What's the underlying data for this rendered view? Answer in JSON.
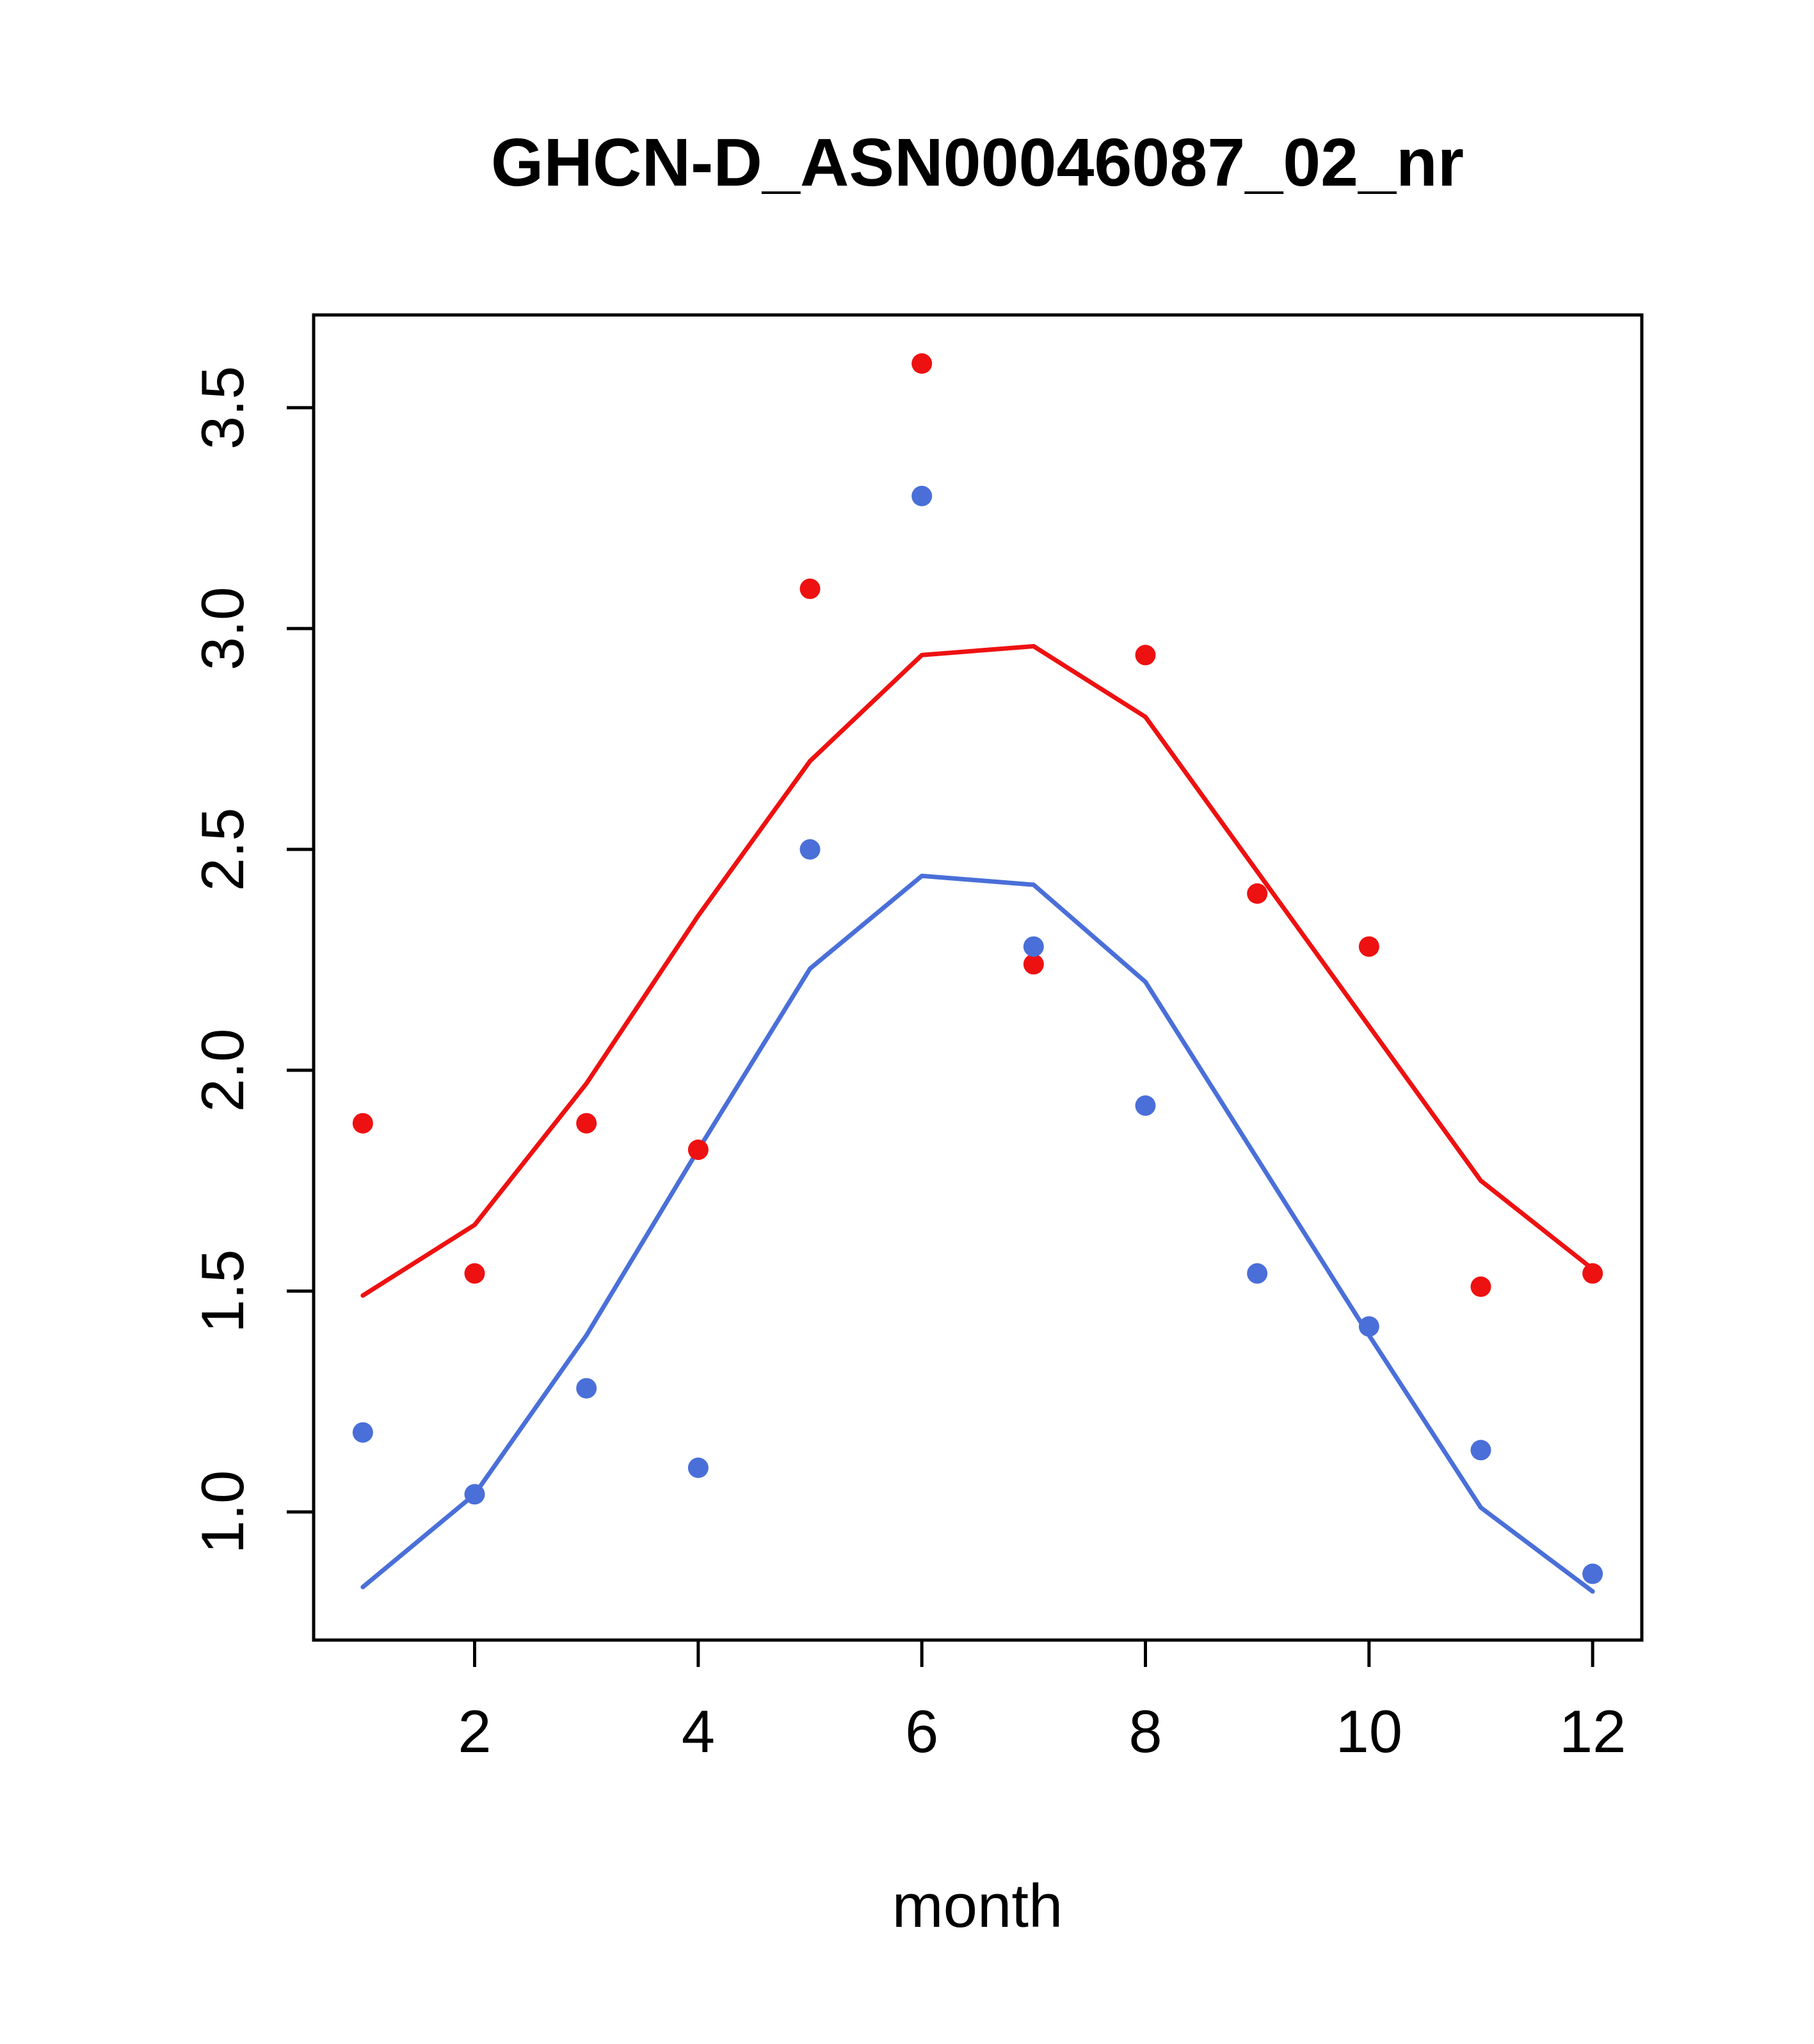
{
  "chart_data": {
    "type": "scatter",
    "title": "GHCN-D_ASN00046087_02_nr",
    "xlabel": "month",
    "ylabel": "",
    "x": [
      1,
      2,
      3,
      4,
      5,
      6,
      7,
      8,
      9,
      10,
      11,
      12
    ],
    "xlim": [
      0.56,
      12.44
    ],
    "ylim": [
      0.71,
      3.71
    ],
    "x_ticks": [
      2,
      4,
      6,
      8,
      10,
      12
    ],
    "x_tick_labels": [
      "2",
      "4",
      "6",
      "8",
      "10",
      "12"
    ],
    "y_ticks": [
      1.0,
      1.5,
      2.0,
      2.5,
      3.0,
      3.5
    ],
    "y_tick_labels": [
      "1.0",
      "1.5",
      "2.0",
      "2.5",
      "3.0",
      "3.5"
    ],
    "grid": false,
    "legend": null,
    "colors": {
      "red": "#ee1111",
      "blue": "#4a6fd8",
      "axis": "#000000"
    },
    "series": [
      {
        "name": "red-points",
        "kind": "points",
        "color_key": "red",
        "values": [
          1.88,
          1.54,
          1.88,
          1.82,
          3.09,
          3.6,
          2.24,
          2.94,
          2.4,
          2.28,
          1.51,
          1.54
        ]
      },
      {
        "name": "red-line",
        "kind": "line",
        "color_key": "red",
        "values": [
          1.49,
          1.65,
          1.97,
          2.35,
          2.7,
          2.94,
          2.96,
          2.8,
          2.45,
          2.1,
          1.75,
          1.55
        ]
      },
      {
        "name": "blue-points",
        "kind": "points",
        "color_key": "blue",
        "values": [
          1.18,
          1.04,
          1.28,
          1.1,
          2.5,
          3.3,
          2.28,
          1.92,
          1.54,
          1.42,
          1.14,
          0.86
        ]
      },
      {
        "name": "blue-line",
        "kind": "line",
        "color_key": "blue",
        "values": [
          0.83,
          1.04,
          1.4,
          1.82,
          2.23,
          2.44,
          2.42,
          2.2,
          1.8,
          1.4,
          1.01,
          0.82
        ]
      }
    ]
  }
}
